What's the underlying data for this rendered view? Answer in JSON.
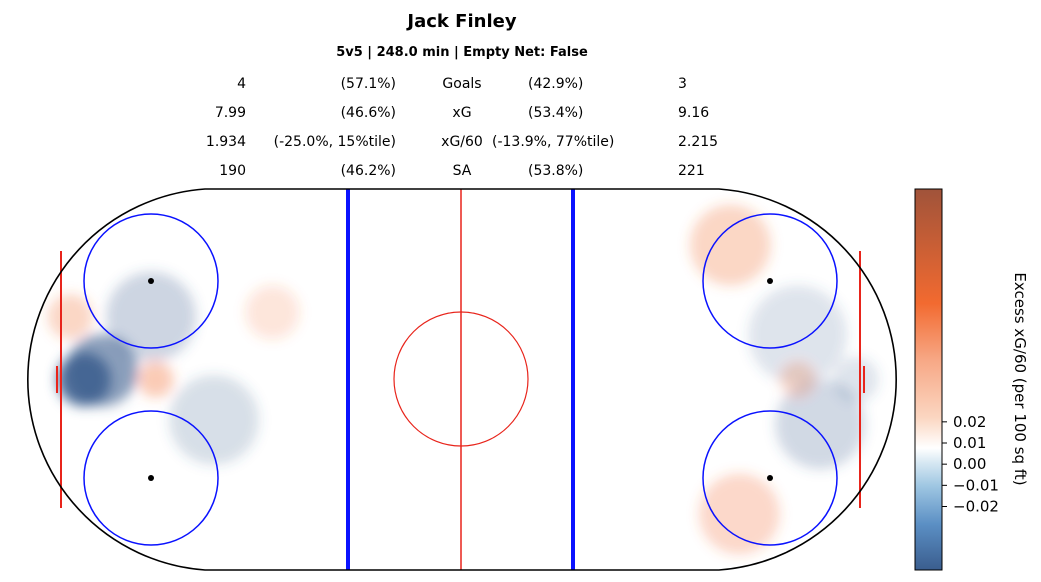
{
  "chart_data": {
    "type": "heatmap",
    "title": "Jack Finley",
    "subtitle": "5v5 | 248.0 min | Empty Net: False",
    "stats_table": [
      {
        "left_value": "4",
        "left_pct": "(57.1%)",
        "label": "Goals",
        "right_pct": "(42.9%)",
        "right_value": "3"
      },
      {
        "left_value": "7.99",
        "left_pct": "(46.6%)",
        "label": "xG",
        "right_pct": "(53.4%)",
        "right_value": "9.16"
      },
      {
        "left_value": "1.934",
        "left_pct": "(-25.0%, 15%tile)",
        "label": "xG/60",
        "right_pct": "(-13.9%, 77%tile)",
        "right_value": "2.215"
      },
      {
        "left_value": "190",
        "left_pct": "(46.2%)",
        "label": "SA",
        "right_pct": "(53.8%)",
        "right_value": "221"
      }
    ],
    "colorbar": {
      "label": "Excess xG/60 (per 100 sq ft)",
      "ticks": [
        0.02,
        0.01,
        0.0,
        -0.01,
        -0.02
      ],
      "tick_labels": [
        "0.02",
        "0.01",
        "0.00",
        "−0.01",
        "−0.02"
      ],
      "range": [
        -0.05,
        0.13
      ],
      "colors": {
        "negative": "#3a5d8e",
        "zero": "#ffffff",
        "positive": "#f26a30",
        "max": "#a0533a"
      }
    },
    "hotspots": [
      {
        "x": -84,
        "y": 0,
        "value": -0.05,
        "spread": 6
      },
      {
        "x": -80,
        "y": 2,
        "value": -0.035,
        "spread": 8
      },
      {
        "x": -69,
        "y": 14,
        "value": -0.015,
        "spread": 10
      },
      {
        "x": -55,
        "y": -9,
        "value": -0.012,
        "spread": 10
      },
      {
        "x": -87,
        "y": 14,
        "value": 0.01,
        "spread": 5
      },
      {
        "x": -68,
        "y": 0,
        "value": 0.012,
        "spread": 4
      },
      {
        "x": -42,
        "y": 15,
        "value": 0.006,
        "spread": 6
      },
      {
        "x": 75,
        "y": 10,
        "value": -0.01,
        "spread": 11
      },
      {
        "x": 80,
        "y": -10,
        "value": -0.014,
        "spread": 10
      },
      {
        "x": 88,
        "y": 0,
        "value": -0.01,
        "spread": 5
      },
      {
        "x": 60,
        "y": 30,
        "value": 0.01,
        "spread": 9
      },
      {
        "x": 62,
        "y": -30,
        "value": 0.009,
        "spread": 9
      },
      {
        "x": 75,
        "y": 0,
        "value": 0.008,
        "spread": 4
      }
    ]
  }
}
